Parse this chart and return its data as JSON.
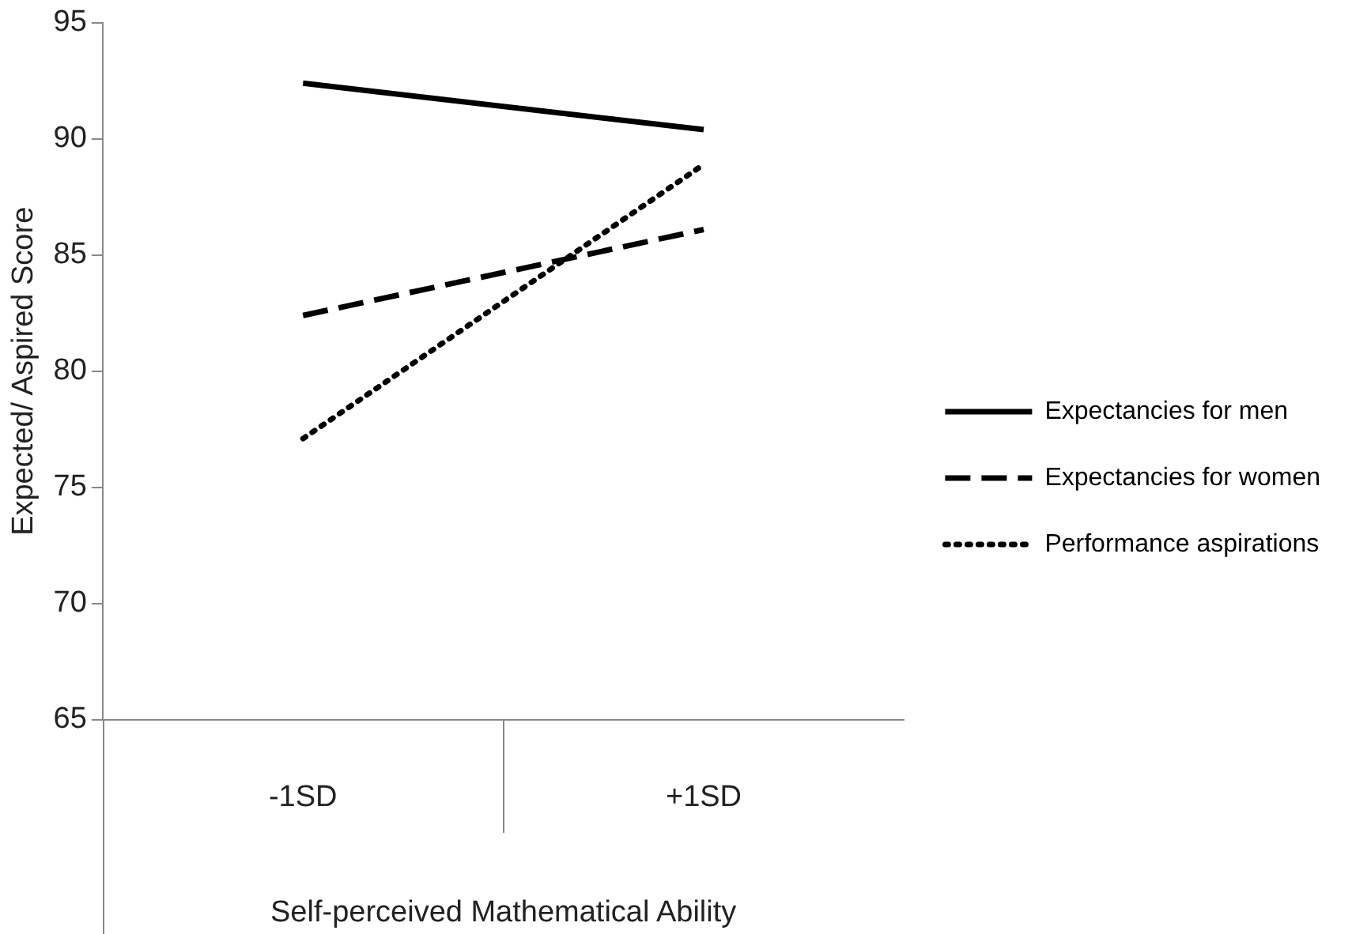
{
  "chart_data": {
    "type": "line",
    "xlabel": "Self-perceived Mathematical Ability",
    "ylabel": "Expected/ Aspired Score",
    "categories": [
      "-1SD",
      "+1SD"
    ],
    "ylim": [
      65,
      95
    ],
    "yticks": [
      65,
      70,
      75,
      80,
      85,
      90,
      95
    ],
    "grid": false,
    "legend": "right",
    "marker": "none",
    "series": [
      {
        "name": "Expectancies for men",
        "color": "#000000",
        "line_style": "solid",
        "values": [
          92.4,
          90.4
        ]
      },
      {
        "name": "Expectancies for women",
        "color": "#000000",
        "line_style": "dashed",
        "values": [
          82.4,
          86.1
        ]
      },
      {
        "name": "Performance aspirations",
        "color": "#000000",
        "line_style": "dotted",
        "values": [
          77.1,
          88.9
        ]
      }
    ]
  }
}
